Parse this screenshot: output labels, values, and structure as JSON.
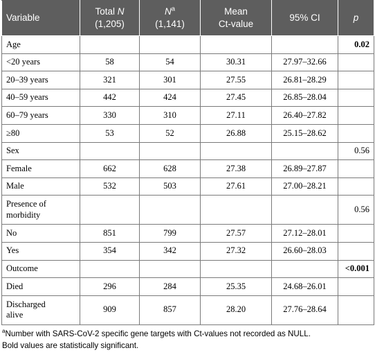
{
  "header": {
    "variable": "Variable",
    "total_n_line1": "Total ",
    "total_n_italic": "N",
    "total_n_line2": "(1,205)",
    "n_italic": "N",
    "n_sup": "a",
    "n_line2": "(1,141)",
    "mean_line1": "Mean",
    "mean_line2": "Ct-value",
    "ci": "95% CI",
    "p": "p"
  },
  "rows": [
    {
      "label": "Age",
      "group": true,
      "total": "",
      "n": "",
      "mean": "",
      "ci": "",
      "p": "0.02",
      "p_bold": true
    },
    {
      "label": "<20 years",
      "group": false,
      "total": "58",
      "n": "54",
      "mean": "30.31",
      "ci": "27.97–32.66",
      "p": ""
    },
    {
      "label": "20–39 years",
      "group": false,
      "total": "321",
      "n": "301",
      "mean": "27.55",
      "ci": "26.81–28.29",
      "p": ""
    },
    {
      "label": "40–59 years",
      "group": false,
      "total": "442",
      "n": "424",
      "mean": "27.45",
      "ci": "26.85–28.04",
      "p": ""
    },
    {
      "label": "60–79 years",
      "group": false,
      "total": "330",
      "n": "310",
      "mean": "27.11",
      "ci": "26.40–27.82",
      "p": ""
    },
    {
      "label": "≥80",
      "group": false,
      "total": "53",
      "n": "52",
      "mean": "26.88",
      "ci": "25.15–28.62",
      "p": ""
    },
    {
      "label": "Sex",
      "group": true,
      "total": "",
      "n": "",
      "mean": "",
      "ci": "",
      "p": "0.56",
      "p_bold": false
    },
    {
      "label": "Female",
      "group": false,
      "total": "662",
      "n": "628",
      "mean": "27.38",
      "ci": "26.89–27.87",
      "p": ""
    },
    {
      "label": "Male",
      "group": false,
      "total": "532",
      "n": "503",
      "mean": "27.61",
      "ci": "27.00–28.21",
      "p": ""
    },
    {
      "label_line1": "Presence of",
      "label_line2": "morbidity",
      "group": true,
      "tall": true,
      "total": "",
      "n": "",
      "mean": "",
      "ci": "",
      "p": "0.56",
      "p_bold": false
    },
    {
      "label": "No",
      "group": false,
      "total": "851",
      "n": "799",
      "mean": "27.57",
      "ci": "27.12–28.01",
      "p": ""
    },
    {
      "label": "Yes",
      "group": false,
      "total": "354",
      "n": "342",
      "mean": "27.32",
      "ci": "26.60–28.03",
      "p": ""
    },
    {
      "label": "Outcome",
      "group": true,
      "total": "",
      "n": "",
      "mean": "",
      "ci": "",
      "p": "<0.001",
      "p_bold": true
    },
    {
      "label": "Died",
      "group": false,
      "total": "296",
      "n": "284",
      "mean": "25.35",
      "ci": "24.68–26.01",
      "p": ""
    },
    {
      "label_line1": "Discharged",
      "label_line2": "alive",
      "group": false,
      "tall": true,
      "total": "909",
      "n": "857",
      "mean": "28.20",
      "ci": "27.76–28.64",
      "p": ""
    }
  ],
  "footnote": {
    "sup": "a",
    "line1": "Number with SARS-CoV-2 specific gene targets with Ct-values not recorded as NULL.",
    "line2": "Bold values are statistically significant."
  }
}
